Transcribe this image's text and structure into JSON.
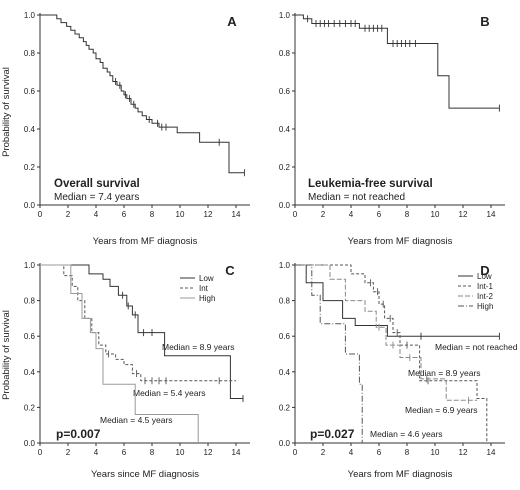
{
  "chart_data": [
    {
      "panel": "A",
      "type": "line",
      "step": true,
      "ylabel": "Probability of survival",
      "xlabel": "Years from MF diagnosis",
      "xlim": [
        0,
        15
      ],
      "ylim": [
        0,
        1
      ],
      "xticks": [
        "0",
        "2",
        "4",
        "6",
        "8",
        "10",
        "12",
        "14"
      ],
      "yticks": [
        "0.0",
        "0.2",
        "0.4",
        "0.6",
        "0.8",
        "1.0"
      ],
      "annotation_title": "Overall survival",
      "annotation_text": "Median = 7.4 years",
      "series": [
        {
          "color": "#333333",
          "dash": "",
          "x": [
            0,
            1.2,
            1.5,
            1.9,
            2.2,
            2.5,
            2.8,
            3.1,
            3.3,
            3.5,
            3.8,
            4.0,
            4.3,
            4.5,
            4.8,
            5.0,
            5.2,
            5.5,
            5.8,
            6.0,
            6.2,
            6.5,
            6.8,
            7.0,
            7.3,
            7.6,
            8.0,
            8.5,
            9.8,
            11.4,
            13.5,
            14.6
          ],
          "y": [
            1.0,
            0.98,
            0.96,
            0.94,
            0.92,
            0.9,
            0.88,
            0.86,
            0.84,
            0.82,
            0.8,
            0.77,
            0.75,
            0.72,
            0.7,
            0.68,
            0.65,
            0.63,
            0.6,
            0.58,
            0.56,
            0.53,
            0.51,
            0.49,
            0.47,
            0.45,
            0.43,
            0.41,
            0.38,
            0.33,
            0.17,
            0.17
          ],
          "censored_x": [
            5.4,
            5.7,
            6.1,
            6.4,
            6.7,
            7.8,
            8.4,
            8.7,
            9.0,
            12.8,
            14.6
          ]
        }
      ]
    },
    {
      "panel": "B",
      "type": "line",
      "step": true,
      "xlabel": "Years from MF diagnosis",
      "xlim": [
        0,
        15
      ],
      "ylim": [
        0,
        1
      ],
      "xticks": [
        "0",
        "2",
        "4",
        "6",
        "8",
        "10",
        "12",
        "14"
      ],
      "yticks": [
        "0.0",
        "0.2",
        "0.4",
        "0.6",
        "0.8",
        "1.0"
      ],
      "annotation_title": "Leukemia-free survival",
      "annotation_text": "Median = not reached",
      "series": [
        {
          "color": "#333333",
          "dash": "",
          "x": [
            0,
            0.6,
            1.2,
            4.6,
            6.6,
            10.2,
            11.0,
            14.6
          ],
          "y": [
            1.0,
            0.98,
            0.955,
            0.93,
            0.85,
            0.68,
            0.51,
            0.51
          ],
          "censored_x": [
            0.9,
            1.5,
            1.8,
            2.1,
            2.4,
            2.8,
            3.2,
            3.6,
            4.0,
            4.3,
            5.0,
            5.3,
            5.6,
            5.9,
            6.2,
            7.0,
            7.3,
            7.6,
            7.9,
            8.2,
            8.6,
            14.6
          ]
        }
      ]
    },
    {
      "panel": "C",
      "type": "line",
      "step": true,
      "ylabel": "Probability of survival",
      "xlabel": "Years since MF diagnosis",
      "xlim": [
        0,
        15
      ],
      "ylim": [
        0,
        1
      ],
      "xticks": [
        "0",
        "2",
        "4",
        "6",
        "8",
        "10",
        "12",
        "14"
      ],
      "yticks": [
        "0.0",
        "0.2",
        "0.4",
        "0.6",
        "0.8",
        "1.0"
      ],
      "p_value": "p=0.007",
      "legend": [
        "Low",
        "Int",
        "High"
      ],
      "median_labels": [
        "Median = 8.9 years",
        "Median = 5.4 years",
        "Median = 4.5 years"
      ],
      "series": [
        {
          "name": "Low",
          "color": "#333333",
          "dash": "",
          "x": [
            0,
            3.5,
            4.5,
            5.0,
            5.6,
            6.2,
            6.6,
            7.0,
            8.9,
            13.6,
            14.5
          ],
          "y": [
            1.0,
            0.95,
            0.92,
            0.88,
            0.83,
            0.77,
            0.72,
            0.62,
            0.49,
            0.25,
            0.25
          ],
          "censored_x": [
            5.9,
            6.3,
            6.8,
            7.4,
            8.0,
            14.5
          ]
        },
        {
          "name": "Int",
          "color": "#555555",
          "dash": "3,2",
          "x": [
            0,
            1.7,
            2.3,
            2.7,
            3.2,
            3.7,
            4.2,
            4.7,
            5.4,
            6.0,
            6.6,
            7.2,
            14.0
          ],
          "y": [
            1.0,
            0.94,
            0.88,
            0.8,
            0.7,
            0.62,
            0.55,
            0.5,
            0.47,
            0.44,
            0.39,
            0.35,
            0.35
          ],
          "censored_x": [
            4.9,
            6.9,
            7.5,
            8.0,
            8.5,
            9.0,
            12.8
          ]
        },
        {
          "name": "High",
          "color": "#9a9a9a",
          "dash": "",
          "x": [
            0,
            2.2,
            3.0,
            3.6,
            4.0,
            4.5,
            6.8,
            11.3
          ],
          "y": [
            1.0,
            0.84,
            0.7,
            0.62,
            0.53,
            0.33,
            0.16,
            0.0
          ],
          "censored_x": []
        }
      ]
    },
    {
      "panel": "D",
      "type": "line",
      "step": true,
      "xlabel": "Years from MF diagnosis",
      "xlim": [
        0,
        15
      ],
      "ylim": [
        0,
        1
      ],
      "xticks": [
        "0",
        "2",
        "4",
        "6",
        "8",
        "10",
        "12",
        "14"
      ],
      "yticks": [
        "0.0",
        "0.2",
        "0.4",
        "0.6",
        "0.8",
        "1.0"
      ],
      "p_value": "p=0.027",
      "legend": [
        "Low",
        "Int-1",
        "Int-2",
        "High"
      ],
      "median_labels": [
        "Median = not reached",
        "Median = 8.9 years",
        "Median = 6.9 years",
        "Median = 4.6 years"
      ],
      "series": [
        {
          "name": "Low",
          "color": "#333333",
          "dash": "",
          "x": [
            0,
            0.8,
            2.0,
            3.4,
            4.3,
            6.6,
            14.6
          ],
          "y": [
            1.0,
            0.9,
            0.8,
            0.7,
            0.66,
            0.6,
            0.6
          ],
          "censored_x": [
            9.0,
            14.6
          ]
        },
        {
          "name": "Int-1",
          "color": "#555555",
          "dash": "3,2",
          "x": [
            0,
            4.0,
            5.0,
            5.6,
            6.0,
            6.4,
            7.0,
            7.5,
            8.9,
            13.0,
            13.7
          ],
          "y": [
            1.0,
            0.95,
            0.9,
            0.85,
            0.78,
            0.7,
            0.62,
            0.55,
            0.35,
            0.25,
            0.0
          ],
          "censored_x": [
            5.4,
            5.9,
            6.3,
            6.8,
            7.3,
            8.0,
            9.5
          ]
        },
        {
          "name": "Int-2",
          "color": "#8a8a8a",
          "dash": "5,2",
          "x": [
            0,
            2.5,
            3.6,
            5.0,
            5.8,
            6.5,
            7.5,
            9.0,
            10.8,
            13.0
          ],
          "y": [
            1.0,
            0.92,
            0.8,
            0.74,
            0.65,
            0.55,
            0.48,
            0.36,
            0.24,
            0.24
          ],
          "censored_x": [
            6.0,
            7.0,
            8.2,
            9.4,
            12.4
          ]
        },
        {
          "name": "High",
          "color": "#555555",
          "dash": "6,2,1,2",
          "x": [
            0,
            1.2,
            1.8,
            3.6,
            4.6,
            4.8
          ],
          "y": [
            1.0,
            0.83,
            0.67,
            0.5,
            0.33,
            0.0
          ],
          "censored_x": []
        }
      ]
    }
  ]
}
